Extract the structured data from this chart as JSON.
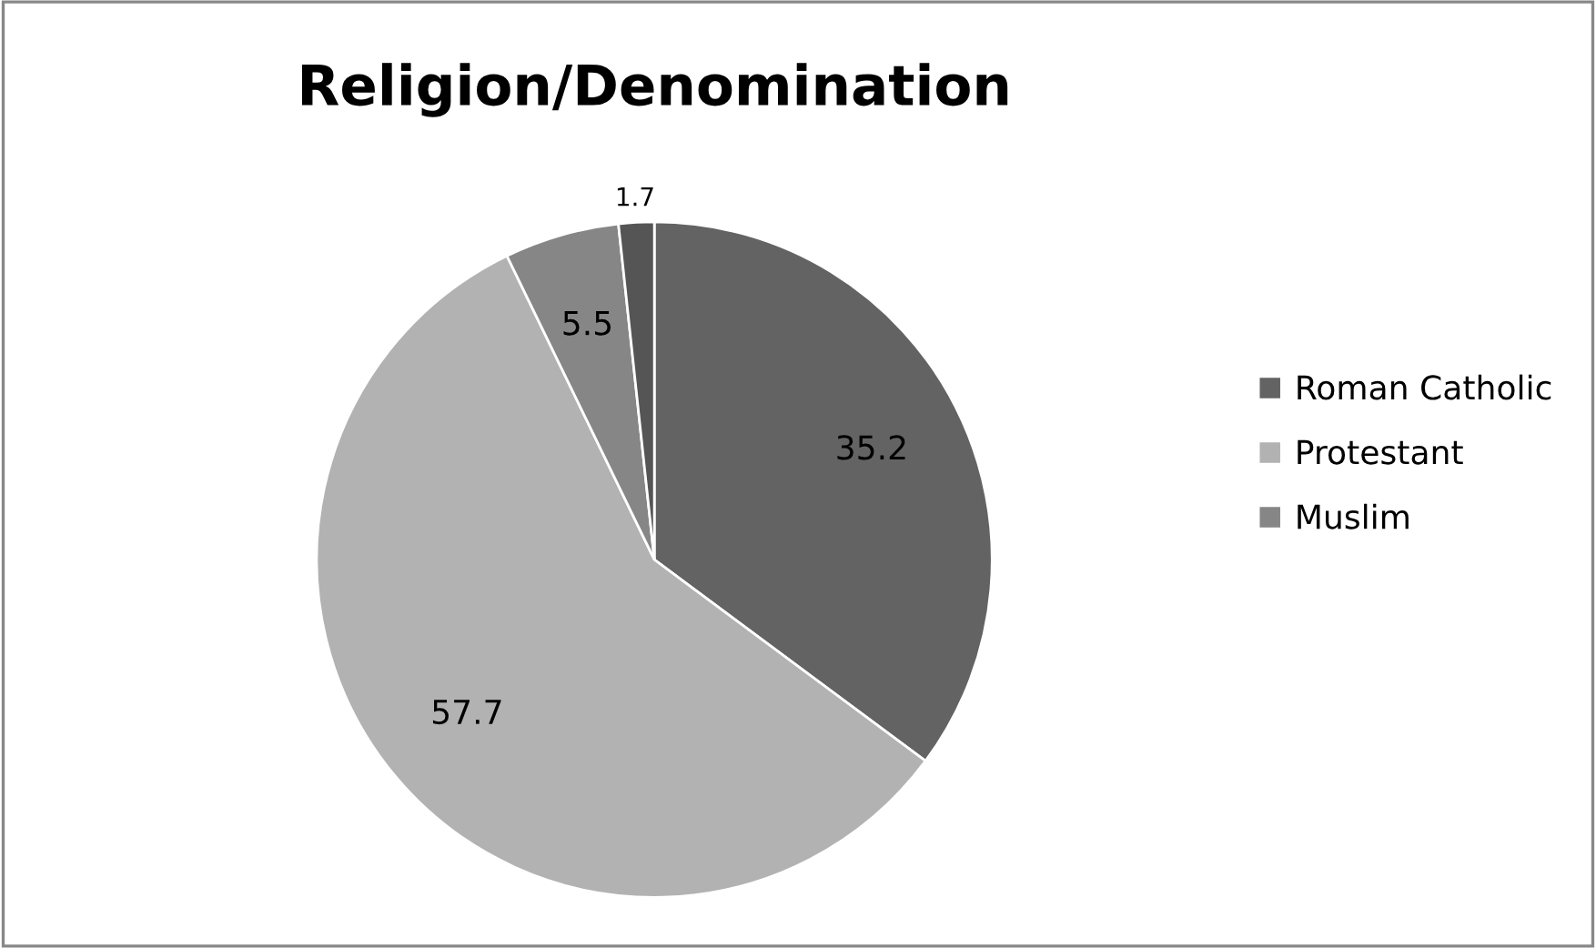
{
  "chart_data": {
    "type": "pie",
    "title": "Religion/Denomination",
    "categories": [
      "Roman Catholic",
      "Protestant",
      "Muslim",
      null
    ],
    "values": [
      35.2,
      57.7,
      5.5,
      1.7
    ],
    "colors": [
      "#636363",
      "#b2b2b2",
      "#868686",
      "#555555"
    ],
    "data_labels": true,
    "legend": "right"
  }
}
